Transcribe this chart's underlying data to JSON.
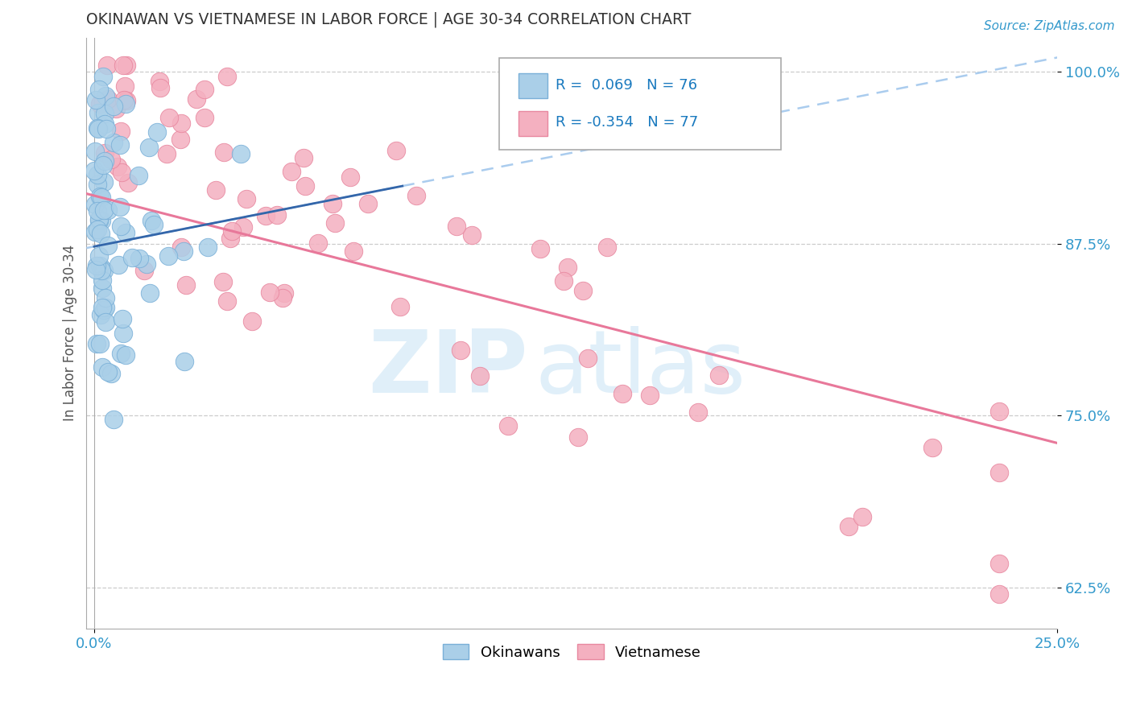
{
  "title": "OKINAWAN VS VIETNAMESE IN LABOR FORCE | AGE 30-34 CORRELATION CHART",
  "source_text": "Source: ZipAtlas.com",
  "ylabel": "In Labor Force | Age 30-34",
  "xlim": [
    -0.002,
    0.25
  ],
  "ylim": [
    0.595,
    1.025
  ],
  "yticks": [
    0.625,
    0.75,
    0.875,
    1.0
  ],
  "ytick_labels": [
    "62.5%",
    "75.0%",
    "87.5%",
    "100.0%"
  ],
  "xticks": [
    0.0,
    0.25
  ],
  "xtick_labels": [
    "0.0%",
    "25.0%"
  ],
  "okinawan_color": "#aacfe8",
  "vietnamese_color": "#f4b0c0",
  "okinawan_R": 0.069,
  "okinawan_N": 76,
  "vietnamese_R": -0.354,
  "vietnamese_N": 77,
  "background_color": "#ffffff",
  "grid_color": "#cccccc",
  "okinawan_edge": "#7ab0d8",
  "vietnamese_edge": "#e888a0",
  "okinawan_line_color": "#7ab0d8",
  "vietnamese_line_color": "#e8789a",
  "seed": 99
}
